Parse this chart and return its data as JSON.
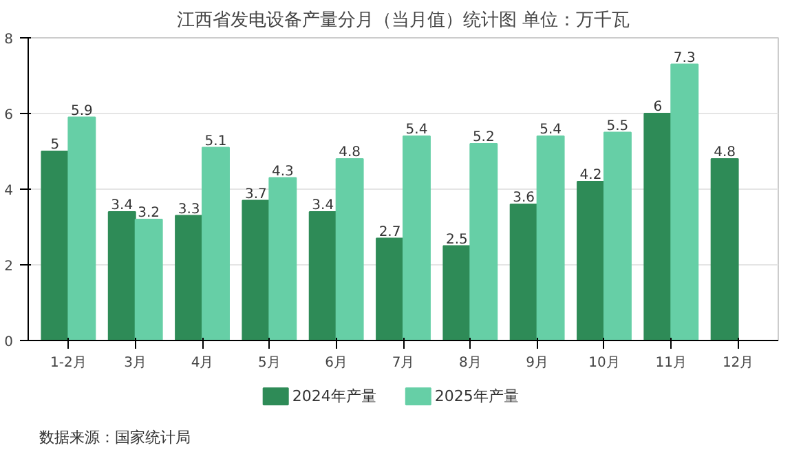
{
  "chart_data": {
    "type": "bar",
    "title": "江西省发电设备产量分月（当月值）统计图 单位：万千瓦",
    "categories": [
      "1-2月",
      "3月",
      "4月",
      "5月",
      "6月",
      "7月",
      "8月",
      "9月",
      "10月",
      "11月",
      "12月"
    ],
    "series": [
      {
        "name": "2024年产量",
        "color": "#2e8b57",
        "values": [
          5,
          3.4,
          3.3,
          3.7,
          3.4,
          2.7,
          2.5,
          3.6,
          4.2,
          6,
          4.8
        ]
      },
      {
        "name": "2025年产量",
        "color": "#66cfa6",
        "values": [
          5.9,
          3.2,
          5.1,
          4.3,
          4.8,
          5.4,
          5.2,
          5.4,
          5.5,
          7.3,
          null
        ]
      }
    ],
    "ylim": [
      0,
      8
    ],
    "yticks": [
      0,
      2,
      4,
      6,
      8
    ],
    "grid": "y",
    "legend": "bottom",
    "data_labels": true,
    "annotations": [
      "数据来源：国家统计局"
    ]
  }
}
